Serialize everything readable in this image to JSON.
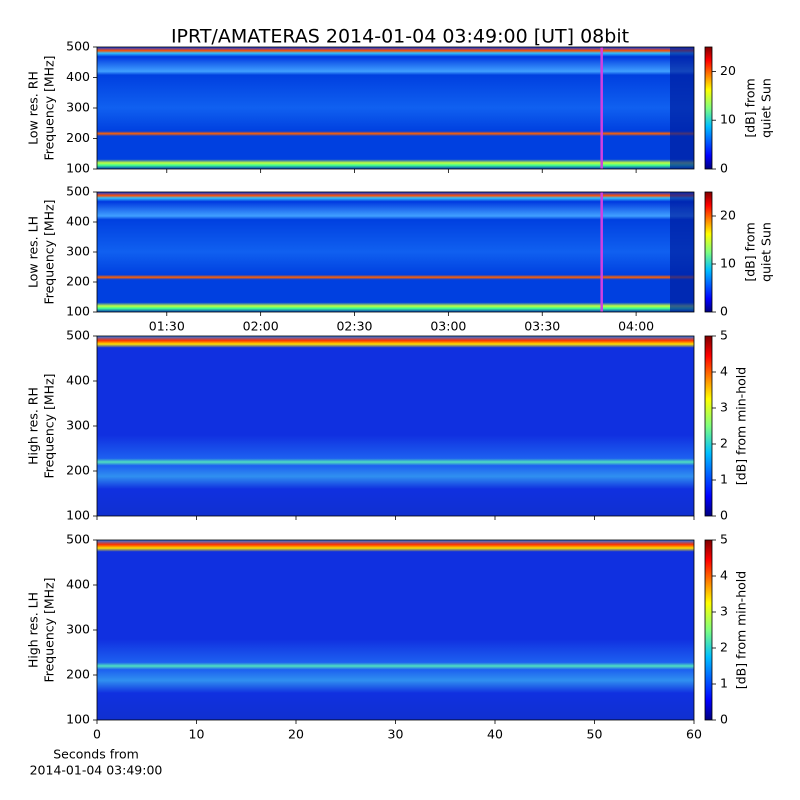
{
  "title": "IPRT/AMATERAS 2014-01-04 03:49:00 [UT]   08bit",
  "chart_data": [
    {
      "type": "heatmap",
      "ylabel": [
        "Low res. RH",
        "Frequency [MHz]"
      ],
      "ylim": [
        100,
        500
      ],
      "yticks": [
        100,
        200,
        300,
        400,
        500
      ],
      "xlim": [
        67.7,
        258.5
      ],
      "vline": 229,
      "vline_color": "#d040e0",
      "clim": [
        0,
        25
      ],
      "cticks": [
        0,
        10,
        20
      ],
      "clabel": [
        "[dB] from",
        "quiet Sun"
      ]
    },
    {
      "type": "heatmap",
      "ylabel": [
        "Low res. LH",
        "Frequency [MHz]"
      ],
      "ylim": [
        100,
        500
      ],
      "yticks": [
        100,
        200,
        300,
        400,
        500
      ],
      "xlim": [
        67.7,
        258.5
      ],
      "xticks": [
        {
          "value": 90,
          "label": "01:30"
        },
        {
          "value": 120,
          "label": "02:00"
        },
        {
          "value": 150,
          "label": "02:30"
        },
        {
          "value": 180,
          "label": "03:00"
        },
        {
          "value": 210,
          "label": "03:30"
        },
        {
          "value": 240,
          "label": "04:00"
        }
      ],
      "vline": 229,
      "vline_color": "#d040e0",
      "clim": [
        0,
        25
      ],
      "cticks": [
        0,
        10,
        20
      ],
      "clabel": [
        "[dB] from",
        "quiet Sun"
      ]
    },
    {
      "type": "heatmap",
      "ylabel": [
        "High res. RH",
        "Frequency [MHz]"
      ],
      "ylim": [
        100,
        500
      ],
      "yticks": [
        100,
        200,
        300,
        400,
        500
      ],
      "xlim": [
        0,
        60
      ],
      "clim": [
        0,
        5
      ],
      "cticks": [
        0,
        1,
        2,
        3,
        4,
        5
      ],
      "clabel": [
        "[dB] from min-hold"
      ]
    },
    {
      "type": "heatmap",
      "ylabel": [
        "High res. LH",
        "Frequency [MHz]"
      ],
      "ylim": [
        100,
        500
      ],
      "yticks": [
        100,
        200,
        300,
        400,
        500
      ],
      "xlim": [
        0,
        60
      ],
      "xticks": [
        0,
        10,
        20,
        30,
        40,
        50,
        60
      ],
      "xlabel": [
        "Seconds from",
        "2014-01-04 03:49:00"
      ],
      "clim": [
        0,
        5
      ],
      "cticks": [
        0,
        1,
        2,
        3,
        4,
        5
      ],
      "clabel": [
        "[dB] from min-hold"
      ]
    }
  ]
}
